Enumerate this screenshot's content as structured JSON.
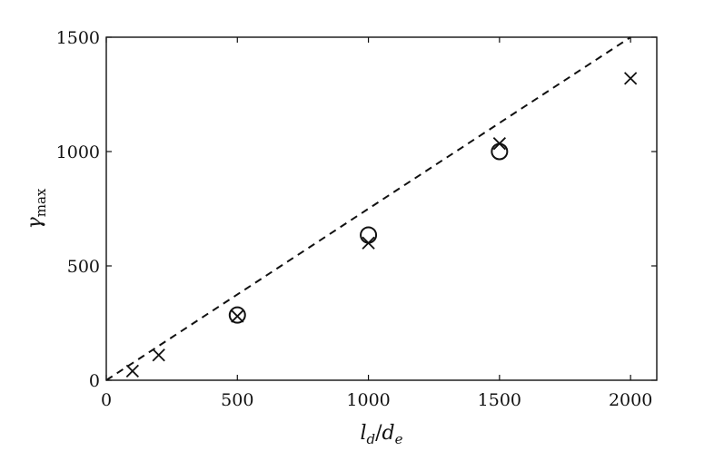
{
  "chart_data": {
    "type": "scatter",
    "title": "",
    "xlabel": {
      "base": "l",
      "sub": "d",
      "sep": "/",
      "base2": "d",
      "sub2": "e"
    },
    "ylabel": {
      "base": "γ",
      "sub": "max"
    },
    "xlim": [
      0,
      2100
    ],
    "ylim": [
      0,
      1500
    ],
    "xticks": [
      0,
      500,
      1000,
      1500,
      2000
    ],
    "yticks": [
      0,
      500,
      1000,
      1500
    ],
    "xtick_labels": [
      "0",
      "500",
      "1000",
      "1500",
      "2000"
    ],
    "ytick_labels": [
      "0",
      "500",
      "1000",
      "1500"
    ],
    "grid": false,
    "legend": "none",
    "series": [
      {
        "marker": "x",
        "points": [
          {
            "x": 100,
            "y": 40
          },
          {
            "x": 200,
            "y": 110
          },
          {
            "x": 500,
            "y": 280
          },
          {
            "x": 1000,
            "y": 600
          },
          {
            "x": 1500,
            "y": 1035
          },
          {
            "x": 2000,
            "y": 1320
          }
        ]
      },
      {
        "marker": "circle",
        "points": [
          {
            "x": 500,
            "y": 285
          },
          {
            "x": 1000,
            "y": 635
          },
          {
            "x": 1500,
            "y": 1000
          }
        ]
      },
      {
        "type": "line",
        "style": "dashed",
        "points": [
          {
            "x": 0,
            "y": 0
          },
          {
            "x": 2000,
            "y": 1500
          }
        ]
      }
    ],
    "colors": {
      "ink": "#111111",
      "background": "#ffffff"
    }
  }
}
